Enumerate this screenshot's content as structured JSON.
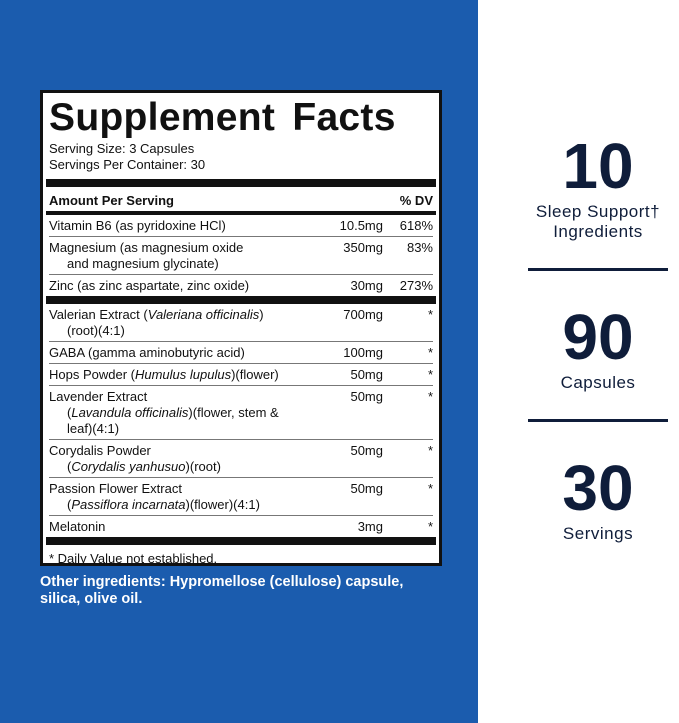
{
  "facts": {
    "title": "Supplement Facts",
    "serving_size": "Serving Size: 3 Capsules",
    "servings_per_container": "Servings Per Container: 30",
    "header": {
      "amount": "Amount Per Serving",
      "dv": "% DV"
    },
    "sections": [
      [
        {
          "name": [
            [
              {
                "text": "Vitamin B6 (as pyridoxine HCl)"
              }
            ]
          ],
          "amount": "10.5mg",
          "dv": "618%"
        },
        {
          "name": [
            [
              {
                "text": "Magnesium (as magnesium oxide"
              }
            ],
            [
              {
                "text": "and magnesium glycinate)"
              }
            ]
          ],
          "amount": "350mg",
          "dv": "83%"
        },
        {
          "name": [
            [
              {
                "text": "Zinc (as zinc aspartate, zinc oxide)"
              }
            ]
          ],
          "amount": "30mg",
          "dv": "273%"
        }
      ],
      [
        {
          "name": [
            [
              {
                "text": "Valerian Extract ("
              },
              {
                "text": "Valeriana officinalis",
                "italic": true
              },
              {
                "text": ")"
              }
            ],
            [
              {
                "text": "(root)(4:1)"
              }
            ]
          ],
          "amount": "700mg",
          "dv": "*"
        },
        {
          "name": [
            [
              {
                "text": "GABA (gamma aminobutyric acid)"
              }
            ]
          ],
          "amount": "100mg",
          "dv": "*"
        },
        {
          "name": [
            [
              {
                "text": "Hops Powder ("
              },
              {
                "text": "Humulus lupulus",
                "italic": true
              },
              {
                "text": ")(flower)"
              }
            ]
          ],
          "amount": "50mg",
          "dv": "*"
        },
        {
          "name": [
            [
              {
                "text": "Lavender Extract"
              }
            ],
            [
              {
                "text": "("
              },
              {
                "text": "Lavandula officinalis",
                "italic": true
              },
              {
                "text": ")(flower, stem & leaf)(4:1)"
              }
            ]
          ],
          "amount": "50mg",
          "dv": "*"
        },
        {
          "name": [
            [
              {
                "text": "Corydalis Powder"
              }
            ],
            [
              {
                "text": "("
              },
              {
                "text": "Corydalis yanhusuo",
                "italic": true
              },
              {
                "text": ")(root)"
              }
            ]
          ],
          "amount": "50mg",
          "dv": "*"
        },
        {
          "name": [
            [
              {
                "text": "Passion Flower Extract"
              }
            ],
            [
              {
                "text": "("
              },
              {
                "text": "Passiflora incarnata",
                "italic": true
              },
              {
                "text": ")(flower)(4:1)"
              }
            ]
          ],
          "amount": "50mg",
          "dv": "*"
        },
        {
          "name": [
            [
              {
                "text": "Melatonin"
              }
            ]
          ],
          "amount": "3mg",
          "dv": "*"
        }
      ]
    ],
    "footnote": "* Daily Value not established."
  },
  "other_ingredients": "Other ingredients: Hypromellose (cellulose) capsule, silica, olive oil.",
  "stats": [
    {
      "value": "10",
      "label": [
        "Sleep Support†",
        "Ingredients"
      ]
    },
    {
      "value": "90",
      "label": [
        "Capsules"
      ]
    },
    {
      "value": "30",
      "label": [
        "Servings"
      ]
    }
  ]
}
